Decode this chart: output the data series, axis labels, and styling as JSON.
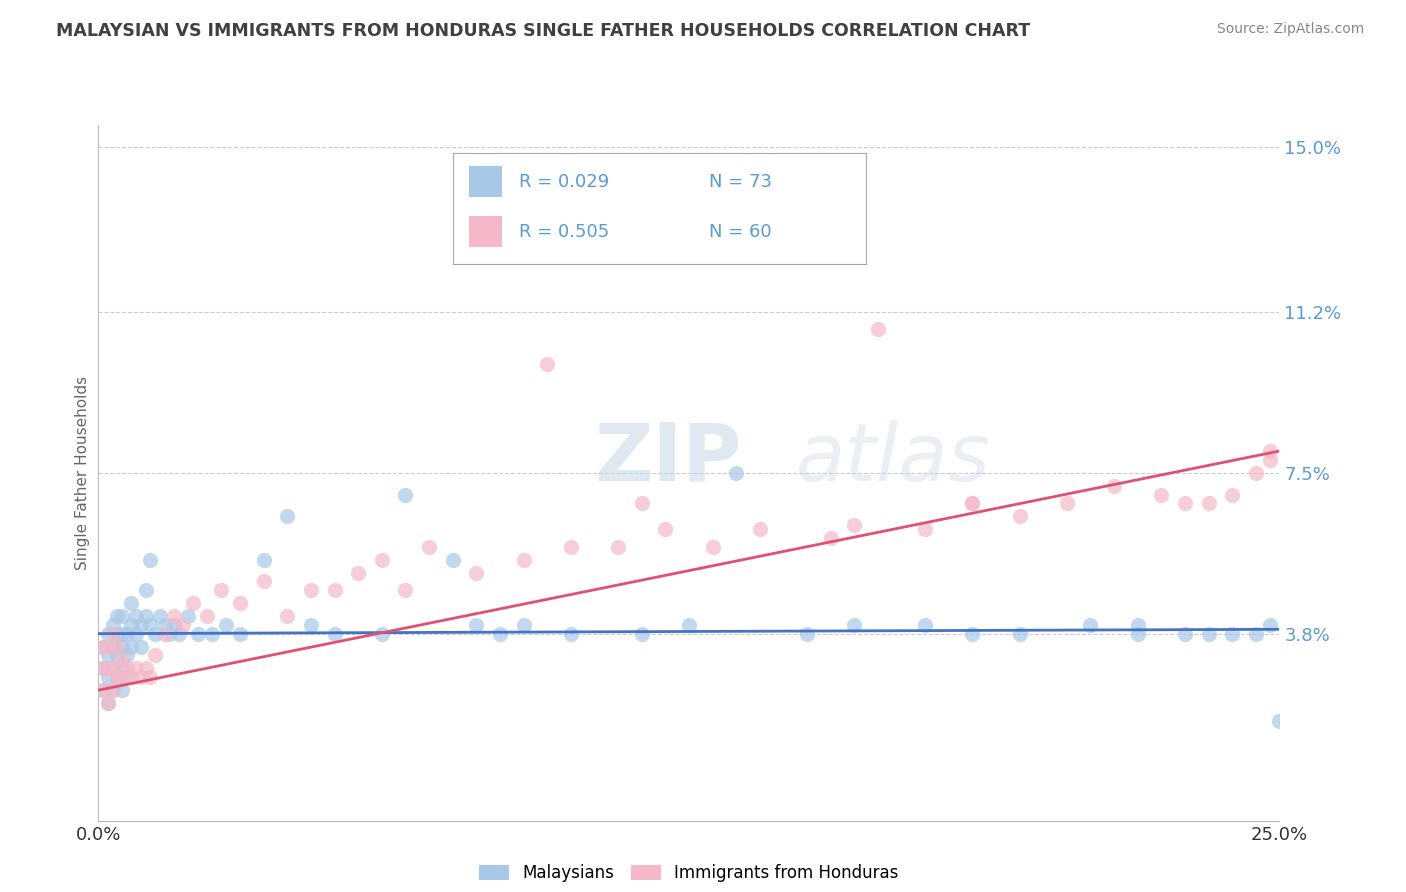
{
  "title": "MALAYSIAN VS IMMIGRANTS FROM HONDURAS SINGLE FATHER HOUSEHOLDS CORRELATION CHART",
  "source": "Source: ZipAtlas.com",
  "ylabel": "Single Father Households",
  "xlim": [
    0.0,
    0.25
  ],
  "ylim": [
    -0.005,
    0.155
  ],
  "yticks": [
    0.038,
    0.075,
    0.112,
    0.15
  ],
  "ytick_labels": [
    "3.8%",
    "7.5%",
    "11.2%",
    "15.0%"
  ],
  "xticks": [
    0.0,
    0.25
  ],
  "xtick_labels": [
    "0.0%",
    "25.0%"
  ],
  "legend_r1": "0.029",
  "legend_n1": "73",
  "legend_r2": "0.505",
  "legend_n2": "60",
  "color_malaysian": "#a8c8e8",
  "color_honduras": "#f4b8c8",
  "color_line_malaysian": "#4472c4",
  "color_line_honduras": "#e05070",
  "color_tick_labels": "#5b9bd5",
  "color_title": "#404040",
  "watermark_zip": "ZIP",
  "watermark_atlas": "atlas",
  "line_m_x0": 0.0,
  "line_m_y0": 0.038,
  "line_m_x1": 0.25,
  "line_m_y1": 0.039,
  "line_h_x0": 0.0,
  "line_h_y0": 0.025,
  "line_h_x1": 0.25,
  "line_h_y1": 0.08,
  "malaysian_x": [
    0.001,
    0.001,
    0.001,
    0.002,
    0.002,
    0.002,
    0.002,
    0.003,
    0.003,
    0.003,
    0.003,
    0.004,
    0.004,
    0.004,
    0.004,
    0.005,
    0.005,
    0.005,
    0.005,
    0.005,
    0.006,
    0.006,
    0.006,
    0.007,
    0.007,
    0.007,
    0.008,
    0.008,
    0.009,
    0.009,
    0.01,
    0.01,
    0.011,
    0.011,
    0.012,
    0.013,
    0.014,
    0.015,
    0.016,
    0.017,
    0.019,
    0.021,
    0.024,
    0.027,
    0.03,
    0.035,
    0.04,
    0.045,
    0.05,
    0.06,
    0.065,
    0.075,
    0.08,
    0.085,
    0.09,
    0.1,
    0.115,
    0.125,
    0.135,
    0.15,
    0.16,
    0.175,
    0.185,
    0.195,
    0.21,
    0.22,
    0.23,
    0.22,
    0.235,
    0.24,
    0.245,
    0.248,
    0.25
  ],
  "malaysian_y": [
    0.025,
    0.03,
    0.035,
    0.022,
    0.028,
    0.033,
    0.038,
    0.025,
    0.03,
    0.035,
    0.04,
    0.028,
    0.033,
    0.038,
    0.042,
    0.025,
    0.03,
    0.035,
    0.038,
    0.042,
    0.028,
    0.033,
    0.038,
    0.035,
    0.04,
    0.045,
    0.038,
    0.042,
    0.035,
    0.04,
    0.042,
    0.048,
    0.04,
    0.055,
    0.038,
    0.042,
    0.04,
    0.038,
    0.04,
    0.038,
    0.042,
    0.038,
    0.038,
    0.04,
    0.038,
    0.055,
    0.065,
    0.04,
    0.038,
    0.038,
    0.07,
    0.055,
    0.04,
    0.038,
    0.04,
    0.038,
    0.038,
    0.04,
    0.075,
    0.038,
    0.04,
    0.04,
    0.038,
    0.038,
    0.04,
    0.038,
    0.038,
    0.04,
    0.038,
    0.038,
    0.038,
    0.04,
    0.018
  ],
  "honduras_x": [
    0.001,
    0.001,
    0.001,
    0.002,
    0.002,
    0.002,
    0.003,
    0.003,
    0.003,
    0.004,
    0.004,
    0.005,
    0.005,
    0.006,
    0.007,
    0.008,
    0.009,
    0.01,
    0.011,
    0.012,
    0.014,
    0.016,
    0.018,
    0.02,
    0.023,
    0.026,
    0.03,
    0.035,
    0.04,
    0.045,
    0.05,
    0.055,
    0.06,
    0.065,
    0.07,
    0.08,
    0.09,
    0.1,
    0.11,
    0.12,
    0.13,
    0.14,
    0.155,
    0.16,
    0.175,
    0.185,
    0.195,
    0.205,
    0.215,
    0.225,
    0.235,
    0.24,
    0.245,
    0.248,
    0.095,
    0.115,
    0.165,
    0.185,
    0.23,
    0.248
  ],
  "honduras_y": [
    0.025,
    0.03,
    0.035,
    0.022,
    0.03,
    0.035,
    0.025,
    0.03,
    0.038,
    0.028,
    0.035,
    0.028,
    0.032,
    0.03,
    0.028,
    0.03,
    0.028,
    0.03,
    0.028,
    0.033,
    0.038,
    0.042,
    0.04,
    0.045,
    0.042,
    0.048,
    0.045,
    0.05,
    0.042,
    0.048,
    0.048,
    0.052,
    0.055,
    0.048,
    0.058,
    0.052,
    0.055,
    0.058,
    0.058,
    0.062,
    0.058,
    0.062,
    0.06,
    0.063,
    0.062,
    0.068,
    0.065,
    0.068,
    0.072,
    0.07,
    0.068,
    0.07,
    0.075,
    0.078,
    0.1,
    0.068,
    0.108,
    0.068,
    0.068,
    0.08
  ]
}
